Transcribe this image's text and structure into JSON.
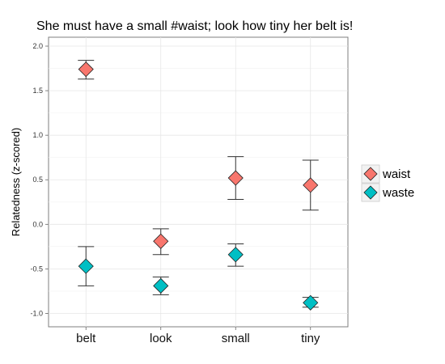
{
  "chart_data": {
    "type": "scatter",
    "title": "She must have a small #waist; look how tiny her belt is!",
    "xlabel": "",
    "ylabel": "Relatedness (z-scored)",
    "categories": [
      "belt",
      "look",
      "small",
      "tiny"
    ],
    "ylim": [
      -1.15,
      2.1
    ],
    "yticks": [
      -1.0,
      -0.5,
      0.0,
      0.5,
      1.0,
      1.5,
      2.0
    ],
    "ytick_labels": [
      "-1.0",
      "-0.5",
      "0.0",
      "0.5",
      "1.0",
      "1.5",
      "2.0"
    ],
    "grid": true,
    "legend_position": "right",
    "series": [
      {
        "name": "waist",
        "color": "#F8766D",
        "values": [
          1.74,
          -0.19,
          0.52,
          0.44
        ],
        "error_low": [
          1.63,
          -0.34,
          0.28,
          0.16
        ],
        "error_high": [
          1.84,
          -0.05,
          0.76,
          0.72
        ]
      },
      {
        "name": "waste",
        "color": "#00BFC4",
        "values": [
          -0.47,
          -0.69,
          -0.34,
          -0.88
        ],
        "error_low": [
          -0.69,
          -0.79,
          -0.47,
          -0.93
        ],
        "error_high": [
          -0.25,
          -0.59,
          -0.22,
          -0.82
        ]
      }
    ]
  }
}
